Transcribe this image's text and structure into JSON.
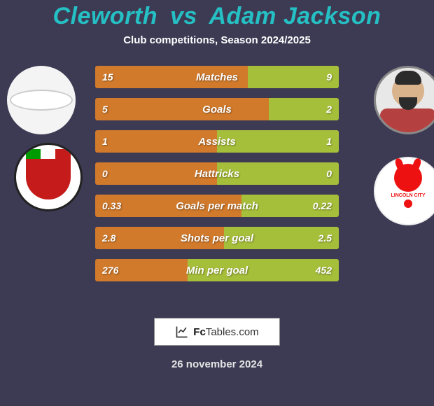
{
  "colors": {
    "background": "#3d3b54",
    "title": "#25c0c4",
    "subtitle": "#ffffff",
    "bar_left": "#d17a2b",
    "bar_right": "#a6bf3b",
    "bar_text": "#ffffff",
    "footer_text": "#e4e4e4",
    "footer_badge_bg": "#ffffff"
  },
  "title": {
    "player1": "Cleworth",
    "vs": "vs",
    "player2": "Adam Jackson",
    "fontsize": 34
  },
  "subtitle": "Club competitions, Season 2024/2025",
  "stats": [
    {
      "label": "Matches",
      "v1": "15",
      "v2": "9",
      "w1": 0.625,
      "w2": 0.375
    },
    {
      "label": "Goals",
      "v1": "5",
      "v2": "2",
      "w1": 0.714,
      "w2": 0.286
    },
    {
      "label": "Assists",
      "v1": "1",
      "v2": "1",
      "w1": 0.5,
      "w2": 0.5
    },
    {
      "label": "Hattricks",
      "v1": "0",
      "v2": "0",
      "w1": 0.5,
      "w2": 0.5
    },
    {
      "label": "Goals per match",
      "v1": "0.33",
      "v2": "0.22",
      "w1": 0.6,
      "w2": 0.4
    },
    {
      "label": "Shots per goal",
      "v1": "2.8",
      "v2": "2.5",
      "w1": 0.528,
      "w2": 0.472
    },
    {
      "label": "Min per goal",
      "v1": "276",
      "v2": "452",
      "w1": 0.379,
      "w2": 0.621
    }
  ],
  "bar": {
    "height": 32,
    "gap": 14,
    "radius": 3,
    "label_fontsize": 15,
    "value_fontsize": 14
  },
  "footer": {
    "site_prefix": "Fc",
    "site_suffix": "Tables.com",
    "date": "26 november 2024"
  },
  "badges": {
    "left_club_hint": "Wrexham-style crest",
    "right_club_hint": "Lincoln City-style imp crest"
  }
}
